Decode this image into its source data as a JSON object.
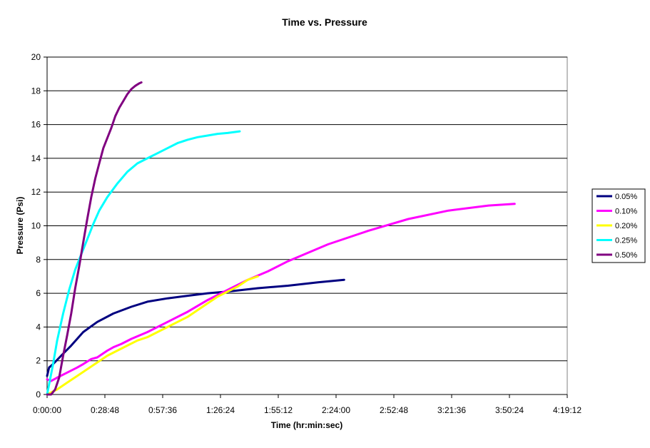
{
  "chart_data": {
    "type": "line",
    "title": "Time vs. Pressure",
    "xlabel": "Time (hr:min:sec)",
    "ylabel": "Pressure (Psi)",
    "xlim": [
      "0:00:00",
      "4:19:12"
    ],
    "ylim": [
      0,
      20
    ],
    "x_ticks": [
      "0:00:00",
      "0:28:48",
      "0:57:36",
      "1:26:24",
      "1:55:12",
      "2:24:00",
      "2:52:48",
      "3:21:36",
      "3:50:24",
      "4:19:12"
    ],
    "y_ticks": [
      0,
      2,
      4,
      6,
      8,
      10,
      12,
      14,
      16,
      18,
      20
    ],
    "grid": "horizontal",
    "legend_position": "right",
    "series": [
      {
        "name": "0.05%",
        "color": "#000080",
        "x": [
          "0:00:00",
          "0:01:00",
          "0:03:00",
          "0:07:00",
          "0:12:00",
          "0:18:00",
          "0:25:00",
          "0:33:00",
          "0:42:00",
          "0:50:00",
          "1:00:00",
          "1:10:00",
          "1:20:00",
          "1:30:00",
          "1:45:00",
          "2:00:00",
          "2:15:00",
          "2:28:00"
        ],
        "y": [
          1.1,
          1.6,
          1.8,
          2.3,
          2.9,
          3.7,
          4.3,
          4.8,
          5.2,
          5.5,
          5.7,
          5.85,
          6.0,
          6.1,
          6.3,
          6.45,
          6.65,
          6.8
        ]
      },
      {
        "name": "0.10%",
        "color": "#ff00ff",
        "x": [
          "0:00:00",
          "0:02:00",
          "0:05:00",
          "0:10:00",
          "0:15:00",
          "0:18:00",
          "0:22:00",
          "0:25:00",
          "0:30:00",
          "0:33:00",
          "0:37:00",
          "0:42:00",
          "0:50:00",
          "1:00:00",
          "1:10:00",
          "1:20:00",
          "1:30:00",
          "1:40:00",
          "1:50:00",
          "2:00:00",
          "2:20:00",
          "2:40:00",
          "3:00:00",
          "3:20:00",
          "3:40:00",
          "3:53:00"
        ],
        "y": [
          0.9,
          0.8,
          1.0,
          1.3,
          1.6,
          1.8,
          2.1,
          2.2,
          2.6,
          2.8,
          3.0,
          3.3,
          3.7,
          4.3,
          4.9,
          5.6,
          6.2,
          6.8,
          7.3,
          7.9,
          8.9,
          9.7,
          10.4,
          10.9,
          11.2,
          11.3
        ]
      },
      {
        "name": "0.20%",
        "color": "#ffff00",
        "x": [
          "0:00:00",
          "0:05:00",
          "0:10:00",
          "0:15:00",
          "0:20:00",
          "0:25:00",
          "0:30:00",
          "0:35:00",
          "0:40:00",
          "0:45:00",
          "0:50:00",
          "0:55:00",
          "1:00:00",
          "1:05:00",
          "1:10:00",
          "1:15:00",
          "1:20:00",
          "1:25:00",
          "1:30:00",
          "1:35:00",
          "1:40:00",
          "1:45:00"
        ],
        "y": [
          0,
          0.3,
          0.7,
          1.1,
          1.5,
          1.9,
          2.3,
          2.6,
          2.9,
          3.2,
          3.4,
          3.7,
          4.0,
          4.3,
          4.6,
          5.0,
          5.4,
          5.8,
          6.1,
          6.4,
          6.8,
          7.0
        ]
      },
      {
        "name": "0.25%",
        "color": "#00ffff",
        "x": [
          "0:00:00",
          "0:01:00",
          "0:03:00",
          "0:05:00",
          "0:08:00",
          "0:11:00",
          "0:14:00",
          "0:17:00",
          "0:20:00",
          "0:23:00",
          "0:26:00",
          "0:30:00",
          "0:35:00",
          "0:40:00",
          "0:45:00",
          "0:50:00",
          "0:55:00",
          "1:00:00",
          "1:05:00",
          "1:10:00",
          "1:15:00",
          "1:20:00",
          "1:25:00",
          "1:30:00",
          "1:36:00"
        ],
        "y": [
          0,
          0.6,
          1.8,
          3.2,
          4.8,
          6.2,
          7.4,
          8.3,
          9.2,
          10.1,
          10.9,
          11.7,
          12.5,
          13.2,
          13.7,
          14.0,
          14.3,
          14.6,
          14.9,
          15.1,
          15.25,
          15.35,
          15.45,
          15.5,
          15.6
        ]
      },
      {
        "name": "0.50%",
        "color": "#800080",
        "x": [
          "0:00:00",
          "0:02:00",
          "0:04:00",
          "0:06:00",
          "0:08:00",
          "0:10:00",
          "0:12:00",
          "0:14:00",
          "0:16:00",
          "0:18:00",
          "0:20:00",
          "0:22:00",
          "0:24:00",
          "0:26:00",
          "0:28:00",
          "0:30:00",
          "0:32:00",
          "0:34:00",
          "0:36:00",
          "0:38:00",
          "0:40:00",
          "0:42:00",
          "0:44:00",
          "0:46:00",
          "0:47:00"
        ],
        "y": [
          0,
          0,
          0.3,
          1.0,
          2.3,
          3.5,
          4.8,
          6.3,
          7.6,
          9.0,
          10.4,
          11.7,
          12.8,
          13.7,
          14.6,
          15.2,
          15.8,
          16.5,
          17.0,
          17.4,
          17.8,
          18.1,
          18.3,
          18.45,
          18.5
        ]
      }
    ]
  }
}
